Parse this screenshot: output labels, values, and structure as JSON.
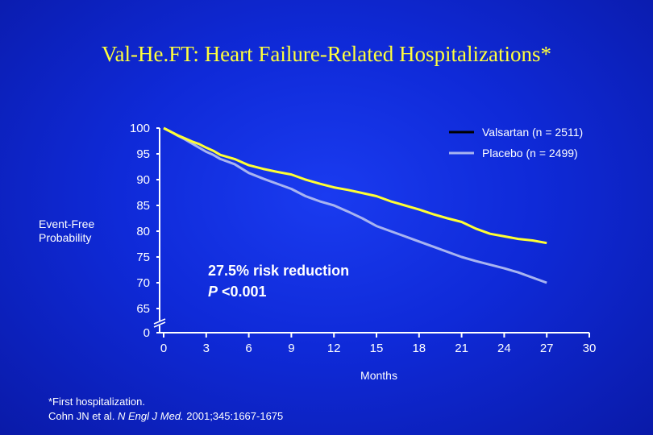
{
  "title": "Val-He.FT: Heart Failure-Related Hospitalizations*",
  "chart_data": {
    "type": "line",
    "xlabel": "Months",
    "ylabel": "Event-Free Probability",
    "x_ticks": [
      0,
      3,
      6,
      9,
      12,
      15,
      18,
      21,
      24,
      27,
      30
    ],
    "y_ticks": [
      100,
      95,
      90,
      85,
      80,
      75,
      70,
      65,
      0
    ],
    "xlim": [
      0,
      30
    ],
    "ylim": [
      65,
      100
    ],
    "axis_break": "y between 0 and 65",
    "grid": false,
    "legend_position": "top-right",
    "series": [
      {
        "name": "Valsartan (n = 2511)",
        "color": "#ffff33",
        "x": [
          0,
          0.5,
          1,
          1.5,
          2,
          2.5,
          3,
          3.5,
          4,
          5,
          6,
          7,
          8,
          9,
          10,
          11,
          12,
          13,
          14,
          15,
          16,
          17,
          18,
          19,
          20,
          21,
          22,
          23,
          24,
          25,
          26,
          27
        ],
        "y": [
          100,
          99.3,
          98.6,
          98.0,
          97.4,
          96.9,
          96.2,
          95.6,
          94.8,
          94.0,
          92.8,
          92.1,
          91.5,
          91.0,
          90.0,
          89.2,
          88.5,
          88.0,
          87.4,
          86.8,
          85.8,
          85.0,
          84.2,
          83.3,
          82.5,
          81.8,
          80.5,
          79.5,
          79.0,
          78.5,
          78.2,
          77.7
        ]
      },
      {
        "name": "Placebo (n = 2499)",
        "color": "#a8b4f0",
        "x": [
          0,
          0.5,
          1,
          1.5,
          2,
          2.5,
          3,
          3.5,
          4,
          5,
          6,
          7,
          8,
          9,
          10,
          11,
          12,
          13,
          14,
          15,
          16,
          17,
          18,
          19,
          20,
          21,
          22,
          23,
          24,
          25,
          26,
          27
        ],
        "y": [
          100,
          99.3,
          98.5,
          97.8,
          97.0,
          96.2,
          95.4,
          94.8,
          94.0,
          93.0,
          91.3,
          90.2,
          89.2,
          88.2,
          86.8,
          85.8,
          85.0,
          83.8,
          82.5,
          81.0,
          80.0,
          79.0,
          78.0,
          77.0,
          76.0,
          75.0,
          74.2,
          73.5,
          72.8,
          72.0,
          71.0,
          70.0
        ]
      }
    ],
    "annotation": {
      "line1": "27.5% risk reduction",
      "line2": "P <0.001"
    }
  },
  "footnote": {
    "line1": "*First hospitalization.",
    "authors": "Cohn JN et al. ",
    "journal": "N Engl J Med.",
    "citation": " 2001;345:1667-1675"
  },
  "colors": {
    "background": "#1228d8",
    "title": "#ffff3c",
    "axis": "#ffffff"
  }
}
